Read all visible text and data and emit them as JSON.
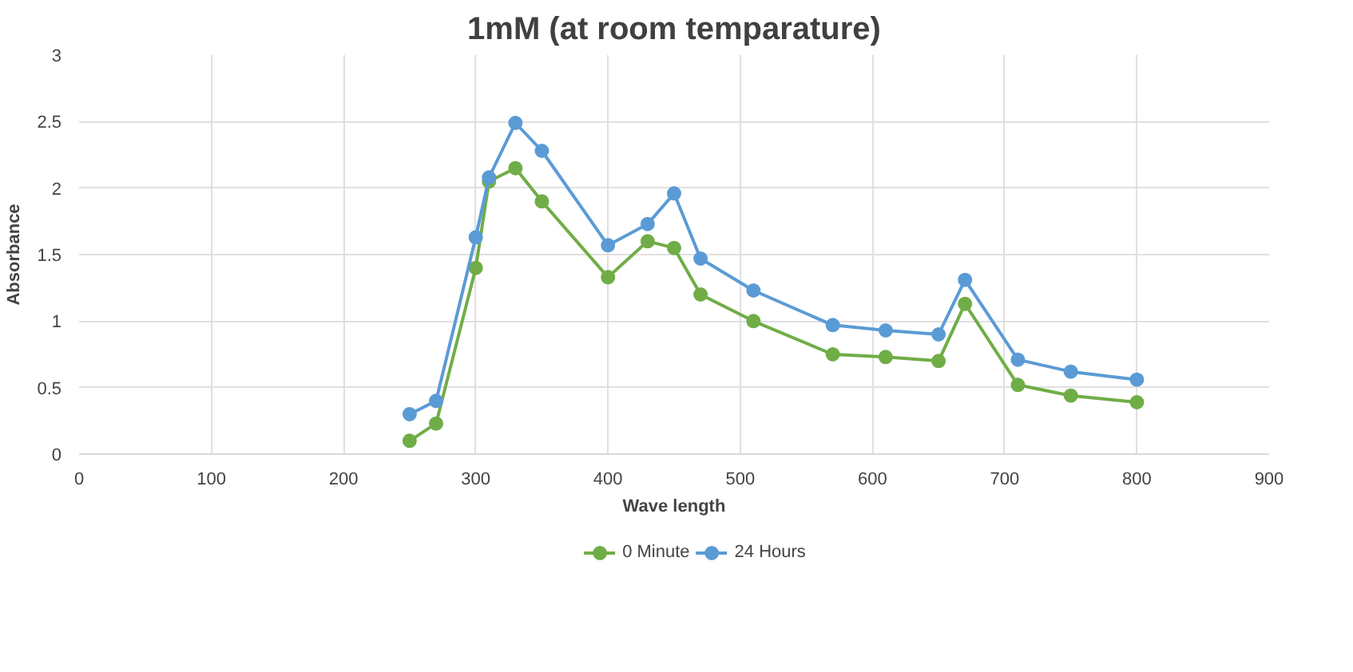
{
  "chart_data": {
    "type": "line",
    "title": "1mM (at room temparature)",
    "xlabel": "Wave length",
    "ylabel": "Absorbance",
    "x": [
      250,
      270,
      300,
      310,
      330,
      350,
      400,
      430,
      450,
      470,
      510,
      570,
      610,
      650,
      670,
      710,
      750,
      800
    ],
    "series": [
      {
        "name": "0 Minute",
        "color": "#70ad47",
        "values": [
          0.1,
          0.23,
          1.4,
          2.05,
          2.15,
          1.9,
          1.33,
          1.6,
          1.55,
          1.2,
          1.0,
          0.75,
          0.73,
          0.7,
          1.13,
          0.52,
          0.44,
          0.39
        ]
      },
      {
        "name": "24 Hours",
        "color": "#5b9bd5",
        "values": [
          0.3,
          0.4,
          1.63,
          2.08,
          2.49,
          2.28,
          1.57,
          1.73,
          1.96,
          1.47,
          1.23,
          0.97,
          0.93,
          0.9,
          1.31,
          0.71,
          0.62,
          0.56
        ]
      }
    ],
    "xlim": [
      0,
      900
    ],
    "xticks": [
      0,
      100,
      200,
      300,
      400,
      500,
      600,
      700,
      800,
      900
    ],
    "ylim": [
      0,
      3
    ],
    "yticks": [
      0,
      0.5,
      1,
      1.5,
      2,
      2.5,
      3
    ],
    "grid": true,
    "legend": "bottom",
    "marker": "circle",
    "line_style": "solid"
  }
}
